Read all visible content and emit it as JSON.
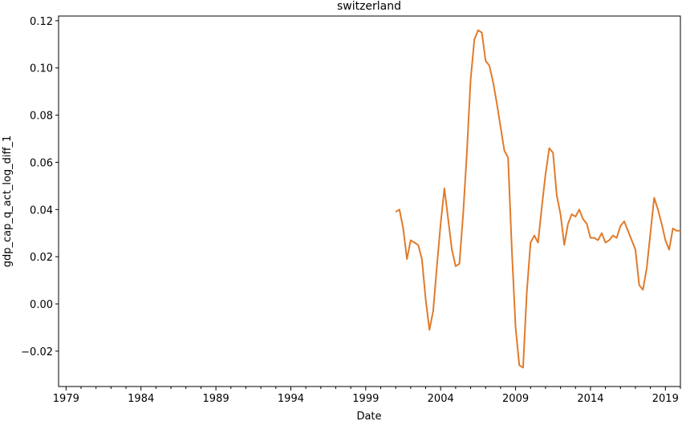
{
  "chart_data": {
    "type": "line",
    "title": "switzerland",
    "xlabel": "Date",
    "ylabel": "gdp_cap_q_act_log_diff_1",
    "xlim": [
      1978.5,
      2020.0
    ],
    "ylim": [
      -0.035,
      0.122
    ],
    "x_ticks": [
      {
        "value": 1979,
        "label": "1979"
      },
      {
        "value": 1984,
        "label": "1984"
      },
      {
        "value": 1989,
        "label": "1989"
      },
      {
        "value": 1994,
        "label": "1994"
      },
      {
        "value": 1999,
        "label": "1999"
      },
      {
        "value": 2004,
        "label": "2004"
      },
      {
        "value": 2009,
        "label": "2009"
      },
      {
        "value": 2014,
        "label": "2014"
      },
      {
        "value": 2019,
        "label": "2019"
      }
    ],
    "y_ticks": [
      {
        "value": -0.02,
        "label": "−0.02"
      },
      {
        "value": 0.0,
        "label": "0.00"
      },
      {
        "value": 0.02,
        "label": "0.02"
      },
      {
        "value": 0.04,
        "label": "0.04"
      },
      {
        "value": 0.06,
        "label": "0.06"
      },
      {
        "value": 0.08,
        "label": "0.08"
      },
      {
        "value": 0.1,
        "label": "0.10"
      },
      {
        "value": 0.12,
        "label": "0.12"
      }
    ],
    "grid": false,
    "series": [
      {
        "color": "#e07b2b",
        "x": [
          2001.0,
          2001.25,
          2001.5,
          2001.75,
          2002.0,
          2002.25,
          2002.5,
          2002.75,
          2003.0,
          2003.25,
          2003.5,
          2003.75,
          2004.0,
          2004.25,
          2004.5,
          2004.75,
          2005.0,
          2005.25,
          2005.5,
          2005.75,
          2006.0,
          2006.25,
          2006.5,
          2006.75,
          2007.0,
          2007.25,
          2007.5,
          2007.75,
          2008.0,
          2008.25,
          2008.5,
          2008.75,
          2009.0,
          2009.25,
          2009.5,
          2009.75,
          2010.0,
          2010.25,
          2010.5,
          2010.75,
          2011.0,
          2011.25,
          2011.5,
          2011.75,
          2012.0,
          2012.25,
          2012.5,
          2012.75,
          2013.0,
          2013.25,
          2013.5,
          2013.75,
          2014.0,
          2014.25,
          2014.5,
          2014.75,
          2015.0,
          2015.25,
          2015.5,
          2015.75,
          2016.0,
          2016.25,
          2016.5,
          2016.75,
          2017.0,
          2017.25,
          2017.5,
          2017.75,
          2018.0,
          2018.25,
          2018.5,
          2018.75,
          2019.0,
          2019.25,
          2019.5,
          2019.75,
          2020.0
        ],
        "y": [
          0.039,
          0.04,
          0.032,
          0.019,
          0.027,
          0.026,
          0.025,
          0.019,
          0.002,
          -0.011,
          -0.003,
          0.016,
          0.034,
          0.049,
          0.036,
          0.023,
          0.016,
          0.017,
          0.038,
          0.064,
          0.095,
          0.112,
          0.116,
          0.115,
          0.103,
          0.101,
          0.094,
          0.085,
          0.075,
          0.065,
          0.062,
          0.023,
          -0.01,
          -0.026,
          -0.027,
          0.005,
          0.026,
          0.029,
          0.026,
          0.041,
          0.055,
          0.066,
          0.064,
          0.046,
          0.038,
          0.025,
          0.034,
          0.038,
          0.037,
          0.04,
          0.036,
          0.034,
          0.028,
          0.028,
          0.027,
          0.03,
          0.026,
          0.027,
          0.029,
          0.028,
          0.033,
          0.035,
          0.031,
          0.027,
          0.023,
          0.008,
          0.006,
          0.015,
          0.03,
          0.045,
          0.04,
          0.034,
          0.027,
          0.023,
          0.032,
          0.031,
          0.031
        ]
      }
    ]
  }
}
